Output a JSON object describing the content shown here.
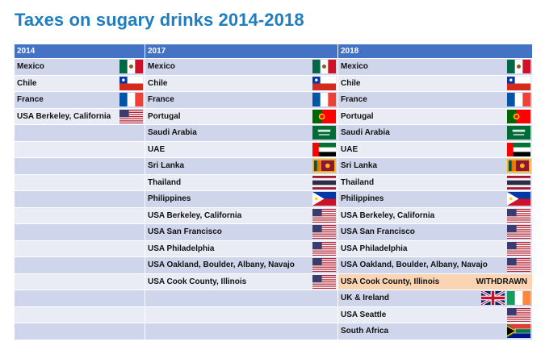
{
  "title": "Taxes on sugary drinks 2014-2018",
  "columns": [
    {
      "year": "2014",
      "rows": [
        {
          "country": "Mexico",
          "flags": [
            "mexico"
          ]
        },
        {
          "country": "Chile",
          "flags": [
            "chile"
          ]
        },
        {
          "country": "France",
          "flags": [
            "france"
          ]
        },
        {
          "country": "USA  Berkeley, California",
          "flags": [
            "usa"
          ]
        },
        {
          "country": "",
          "flags": []
        },
        {
          "country": "",
          "flags": []
        },
        {
          "country": "",
          "flags": []
        },
        {
          "country": "",
          "flags": []
        },
        {
          "country": "",
          "flags": []
        },
        {
          "country": "",
          "flags": []
        },
        {
          "country": "",
          "flags": []
        },
        {
          "country": "",
          "flags": []
        },
        {
          "country": "",
          "flags": []
        },
        {
          "country": "",
          "flags": []
        },
        {
          "country": "",
          "flags": []
        },
        {
          "country": "",
          "flags": []
        },
        {
          "country": "",
          "flags": []
        }
      ]
    },
    {
      "year": "2017",
      "rows": [
        {
          "country": "Mexico",
          "flags": [
            "mexico"
          ]
        },
        {
          "country": "Chile",
          "flags": [
            "chile"
          ]
        },
        {
          "country": "France",
          "flags": [
            "france"
          ]
        },
        {
          "country": "Portugal",
          "flags": [
            "portugal"
          ]
        },
        {
          "country": "Saudi Arabia",
          "flags": [
            "saudi"
          ]
        },
        {
          "country": "UAE",
          "flags": [
            "uae"
          ]
        },
        {
          "country": "Sri Lanka",
          "flags": [
            "srilanka"
          ]
        },
        {
          "country": "Thailand",
          "flags": [
            "thailand"
          ]
        },
        {
          "country": "Philippines",
          "flags": [
            "philippines"
          ]
        },
        {
          "country": "USA  Berkeley, California",
          "flags": [
            "usa"
          ]
        },
        {
          "country": "USA  San Francisco",
          "flags": [
            "usa"
          ]
        },
        {
          "country": "USA  Philadelphia",
          "flags": [
            "usa"
          ]
        },
        {
          "country": "USA  Oakland, Boulder, Albany, Navajo",
          "flags": [
            "usa"
          ]
        },
        {
          "country": "USA  Cook County, Illinois",
          "flags": [
            "usa"
          ]
        },
        {
          "country": "",
          "flags": []
        },
        {
          "country": "",
          "flags": []
        },
        {
          "country": "",
          "flags": []
        }
      ]
    },
    {
      "year": "2018",
      "rows": [
        {
          "country": "Mexico",
          "flags": [
            "mexico"
          ]
        },
        {
          "country": "Chile",
          "flags": [
            "chile"
          ]
        },
        {
          "country": "France",
          "flags": [
            "france"
          ]
        },
        {
          "country": "Portugal",
          "flags": [
            "portugal"
          ]
        },
        {
          "country": "Saudi Arabia",
          "flags": [
            "saudi"
          ]
        },
        {
          "country": "UAE",
          "flags": [
            "uae"
          ]
        },
        {
          "country": "Sri Lanka",
          "flags": [
            "srilanka"
          ]
        },
        {
          "country": "Thailand",
          "flags": [
            "thailand"
          ]
        },
        {
          "country": "Philippines",
          "flags": [
            "philippines"
          ]
        },
        {
          "country": "USA  Berkeley, California",
          "flags": [
            "usa"
          ]
        },
        {
          "country": "USA  San Francisco",
          "flags": [
            "usa"
          ]
        },
        {
          "country": "USA  Philadelphia",
          "flags": [
            "usa"
          ]
        },
        {
          "country": "USA  Oakland, Boulder, Albany, Navajo",
          "flags": [
            "usa"
          ]
        },
        {
          "country": "USA  Cook County, Illinois",
          "flags": [],
          "status": "WITHDRAWN",
          "highlight": true
        },
        {
          "country": "UK & Ireland",
          "flags": [
            "uk",
            "ireland"
          ]
        },
        {
          "country": "USA Seattle",
          "flags": [
            "usa"
          ]
        },
        {
          "country": "South Africa",
          "flags": [
            "southafrica"
          ]
        }
      ]
    }
  ],
  "colors": {
    "title": "#1F7EC0",
    "header": "#4472C4",
    "row_odd": "#CFD5EA",
    "row_even": "#E9EBF5",
    "highlight": "#FBD4B4"
  }
}
